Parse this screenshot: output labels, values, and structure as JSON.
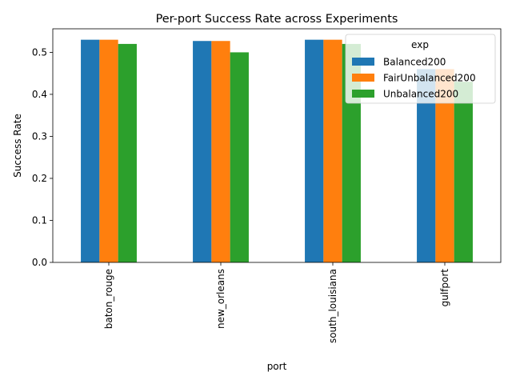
{
  "chart_data": {
    "type": "bar",
    "title": "Per-port Success Rate across Experiments",
    "xlabel": "port",
    "ylabel": "Success Rate",
    "categories": [
      "baton_rouge",
      "new_orleans",
      "south_louisiana",
      "gulfport"
    ],
    "series": [
      {
        "name": "Balanced200",
        "color": "#1f77b4",
        "values": [
          0.53,
          0.527,
          0.53,
          0.46
        ]
      },
      {
        "name": "FairUnbalanced200",
        "color": "#ff7f0e",
        "values": [
          0.53,
          0.527,
          0.53,
          0.46
        ]
      },
      {
        "name": "Unbalanced200",
        "color": "#2ca02c",
        "values": [
          0.52,
          0.5,
          0.52,
          0.43
        ]
      }
    ],
    "ylim": [
      0,
      0.556
    ],
    "yticks": [
      0.0,
      0.1,
      0.2,
      0.3,
      0.4,
      0.5
    ],
    "ytick_labels": [
      "0.0",
      "0.1",
      "0.2",
      "0.3",
      "0.4",
      "0.5"
    ],
    "legend_title": "exp",
    "legend_position": "top-right",
    "grid": false
  }
}
